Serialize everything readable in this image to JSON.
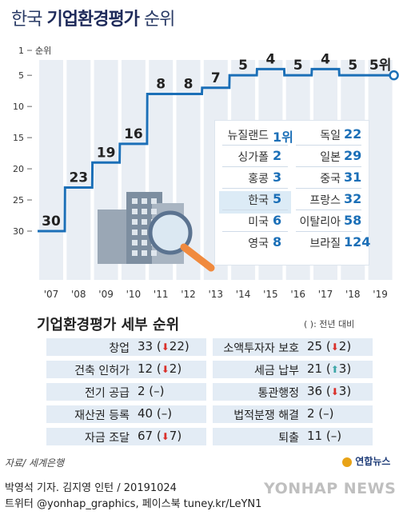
{
  "title": {
    "light": "한국",
    "bold": "기업환경평가",
    "suffix": "순위"
  },
  "chart_data": {
    "type": "line",
    "title": "한국 기업환경평가 순위",
    "x": [
      "'07",
      "'08",
      "'09",
      "'10",
      "'11",
      "'12",
      "'13",
      "'14",
      "'15",
      "'16",
      "'17",
      "'18",
      "'19"
    ],
    "series": [
      {
        "values": [
          30,
          23,
          19,
          16,
          8,
          8,
          7,
          5,
          4,
          5,
          4,
          5,
          5
        ]
      }
    ],
    "data_labels": [
      "30",
      "23",
      "19",
      "16",
      "8",
      "8",
      "7",
      "5",
      "4",
      "5",
      "4",
      "5",
      "5위"
    ],
    "y_axis": {
      "label": "순위",
      "ticks": [
        "1",
        "5",
        "10",
        "15",
        "20",
        "25",
        "30"
      ],
      "inverted": true,
      "ylim": [
        1,
        32
      ]
    },
    "style": "step",
    "grid": false
  },
  "colors": {
    "line": "#1b6fb7",
    "band": "#e9eef4",
    "accent_blue": "#1b6fb7",
    "down_red": "#d9302a",
    "up_teal": "#3fa7a8",
    "row_bg": "#e3ecf5"
  },
  "rankings": {
    "left": [
      {
        "country": "뉴질랜드",
        "rank": "1위"
      },
      {
        "country": "싱가폴",
        "rank": "2"
      },
      {
        "country": "홍콩",
        "rank": "3"
      },
      {
        "country": "한국",
        "rank": "5"
      },
      {
        "country": "미국",
        "rank": "6"
      },
      {
        "country": "영국",
        "rank": "8"
      }
    ],
    "right": [
      {
        "country": "독일",
        "rank": "22"
      },
      {
        "country": "일본",
        "rank": "29"
      },
      {
        "country": "중국",
        "rank": "31"
      },
      {
        "country": "프랑스",
        "rank": "32"
      },
      {
        "country": "이탈리아",
        "rank": "58"
      },
      {
        "country": "브라질",
        "rank": "124"
      }
    ]
  },
  "detail": {
    "title": "기업환경평가 세부 순위",
    "note": "( ): 전년 대비",
    "rows": [
      {
        "left_label": "창업",
        "left_val": "33",
        "left_change": "22",
        "left_dir": "down",
        "right_label": "소액투자자 보호",
        "right_val": "25",
        "right_change": "2",
        "right_dir": "down"
      },
      {
        "left_label": "건축 인허가",
        "left_val": "12",
        "left_change": "2",
        "left_dir": "down",
        "right_label": "세금 납부",
        "right_val": "21",
        "right_change": "3",
        "right_dir": "up"
      },
      {
        "left_label": "전기 공급",
        "left_val": "2",
        "left_change": "–",
        "left_dir": "none",
        "right_label": "통관행정",
        "right_val": "36",
        "right_change": "3",
        "right_dir": "down"
      },
      {
        "left_label": "재산권 등록",
        "left_val": "40",
        "left_change": "–",
        "left_dir": "none",
        "right_label": "법적분쟁 해결",
        "right_val": "2",
        "right_change": "–",
        "right_dir": "none"
      },
      {
        "left_label": "자금 조달",
        "left_val": "67",
        "left_change": "7",
        "left_dir": "down",
        "right_label": "퇴출",
        "right_val": "11",
        "right_change": "–",
        "right_dir": "none"
      }
    ]
  },
  "footer": {
    "source": "자료/ 세계은행",
    "brand": "연합뉴스",
    "credit1": "박영석 기자. 김지영 인턴 /  20191024",
    "credit2": "트위터 @yonhap_graphics, 페이스북 tuney.kr/LeYN1",
    "watermark": "YONHAP NEWS"
  }
}
